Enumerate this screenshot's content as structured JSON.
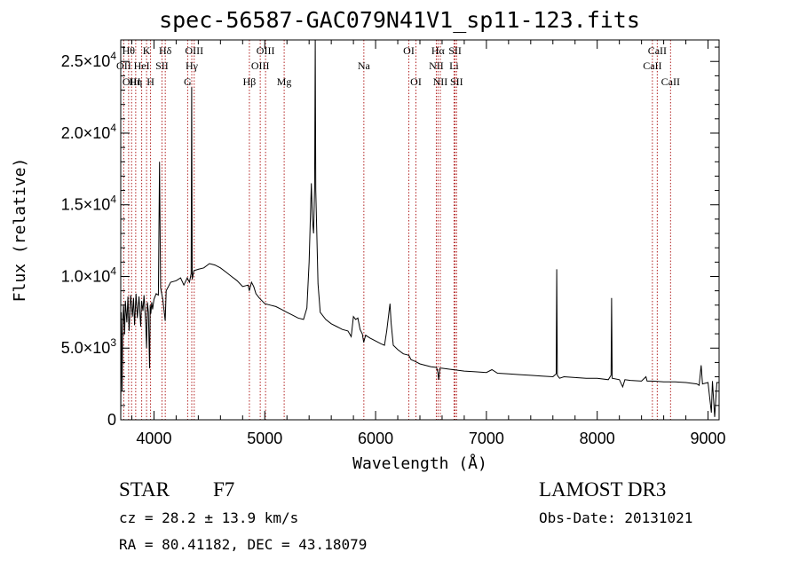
{
  "chart_data": {
    "type": "line",
    "title": "spec-56587-GAC079N41V1_sp11-123.fits",
    "xlabel": "Wavelength (Å)",
    "ylabel": "Flux (relative)",
    "xlim": [
      3700,
      9100
    ],
    "ylim": [
      0,
      26500
    ],
    "x_ticks": [
      4000,
      5000,
      6000,
      7000,
      8000,
      9000
    ],
    "y_ticks": [
      {
        "value": 0,
        "mantissa": "0",
        "exp": ""
      },
      {
        "value": 5000,
        "mantissa": "5.0×10",
        "exp": "3"
      },
      {
        "value": 10000,
        "mantissa": "1.0×10",
        "exp": "4"
      },
      {
        "value": 15000,
        "mantissa": "1.5×10",
        "exp": "4"
      },
      {
        "value": 20000,
        "mantissa": "2.0×10",
        "exp": "4"
      },
      {
        "value": 25000,
        "mantissa": "2.5×10",
        "exp": "4"
      }
    ],
    "series": [
      {
        "name": "flux",
        "points": [
          [
            3700,
            0
          ],
          [
            3705,
            7500
          ],
          [
            3712,
            2000
          ],
          [
            3718,
            6500
          ],
          [
            3725,
            8000
          ],
          [
            3735,
            6000
          ],
          [
            3742,
            8300
          ],
          [
            3755,
            6800
          ],
          [
            3765,
            8600
          ],
          [
            3775,
            6200
          ],
          [
            3790,
            8700
          ],
          [
            3805,
            7200
          ],
          [
            3815,
            8500
          ],
          [
            3825,
            6600
          ],
          [
            3838,
            8800
          ],
          [
            3850,
            7100
          ],
          [
            3865,
            8600
          ],
          [
            3880,
            6500
          ],
          [
            3888,
            8300
          ],
          [
            3900,
            7600
          ],
          [
            3910,
            8700
          ],
          [
            3925,
            6800
          ],
          [
            3933,
            5000
          ],
          [
            3940,
            8200
          ],
          [
            3950,
            7500
          ],
          [
            3960,
            3600
          ],
          [
            3966,
            8000
          ],
          [
            3972,
            7400
          ],
          [
            3980,
            8200
          ],
          [
            3988,
            7700
          ],
          [
            4000,
            8400
          ],
          [
            4020,
            8800
          ],
          [
            4040,
            8700
          ],
          [
            4050,
            18000
          ],
          [
            4060,
            9200
          ],
          [
            4080,
            8400
          ],
          [
            4101,
            6900
          ],
          [
            4110,
            9000
          ],
          [
            4150,
            9600
          ],
          [
            4200,
            9700
          ],
          [
            4240,
            9900
          ],
          [
            4270,
            9400
          ],
          [
            4300,
            9900
          ],
          [
            4320,
            9600
          ],
          [
            4335,
            10200
          ],
          [
            4340,
            23200
          ],
          [
            4345,
            9800
          ],
          [
            4360,
            10400
          ],
          [
            4400,
            10500
          ],
          [
            4450,
            10600
          ],
          [
            4500,
            10900
          ],
          [
            4550,
            10800
          ],
          [
            4600,
            10600
          ],
          [
            4650,
            10300
          ],
          [
            4700,
            10000
          ],
          [
            4750,
            9700
          ],
          [
            4800,
            9300
          ],
          [
            4850,
            9400
          ],
          [
            4860,
            9000
          ],
          [
            4880,
            9600
          ],
          [
            4900,
            9300
          ],
          [
            4920,
            8800
          ],
          [
            4950,
            8500
          ],
          [
            5000,
            8100
          ],
          [
            5050,
            8000
          ],
          [
            5100,
            7900
          ],
          [
            5150,
            7700
          ],
          [
            5200,
            7500
          ],
          [
            5250,
            7300
          ],
          [
            5300,
            7100
          ],
          [
            5350,
            7000
          ],
          [
            5380,
            7800
          ],
          [
            5400,
            11000
          ],
          [
            5420,
            16500
          ],
          [
            5430,
            14000
          ],
          [
            5440,
            13000
          ],
          [
            5450,
            16200
          ],
          [
            5455,
            26500
          ],
          [
            5460,
            16000
          ],
          [
            5480,
            9500
          ],
          [
            5500,
            7500
          ],
          [
            5550,
            7000
          ],
          [
            5600,
            6700
          ],
          [
            5650,
            6500
          ],
          [
            5700,
            6300
          ],
          [
            5750,
            6200
          ],
          [
            5780,
            5800
          ],
          [
            5800,
            7200
          ],
          [
            5820,
            7000
          ],
          [
            5840,
            7100
          ],
          [
            5860,
            6300
          ],
          [
            5880,
            6000
          ],
          [
            5893,
            5400
          ],
          [
            5910,
            5900
          ],
          [
            5950,
            5700
          ],
          [
            6000,
            5500
          ],
          [
            6050,
            5300
          ],
          [
            6080,
            5200
          ],
          [
            6100,
            6200
          ],
          [
            6120,
            7500
          ],
          [
            6130,
            8100
          ],
          [
            6140,
            6800
          ],
          [
            6160,
            5200
          ],
          [
            6200,
            4900
          ],
          [
            6250,
            4600
          ],
          [
            6300,
            4500
          ],
          [
            6320,
            4200
          ],
          [
            6350,
            4100
          ],
          [
            6400,
            3900
          ],
          [
            6450,
            3800
          ],
          [
            6500,
            3700
          ],
          [
            6550,
            3650
          ],
          [
            6563,
            3300
          ],
          [
            6570,
            2800
          ],
          [
            6580,
            3600
          ],
          [
            6600,
            3600
          ],
          [
            6700,
            3500
          ],
          [
            6800,
            3400
          ],
          [
            6900,
            3350
          ],
          [
            7000,
            3300
          ],
          [
            7050,
            3500
          ],
          [
            7100,
            3250
          ],
          [
            7200,
            3200
          ],
          [
            7300,
            3150
          ],
          [
            7400,
            3100
          ],
          [
            7500,
            3050
          ],
          [
            7600,
            3000
          ],
          [
            7630,
            3200
          ],
          [
            7635,
            10500
          ],
          [
            7640,
            3100
          ],
          [
            7660,
            2900
          ],
          [
            7700,
            3000
          ],
          [
            7800,
            2950
          ],
          [
            7900,
            2900
          ],
          [
            8000,
            2900
          ],
          [
            8100,
            2800
          ],
          [
            8125,
            3100
          ],
          [
            8130,
            8500
          ],
          [
            8135,
            2900
          ],
          [
            8200,
            2800
          ],
          [
            8230,
            2300
          ],
          [
            8250,
            2800
          ],
          [
            8300,
            2750
          ],
          [
            8400,
            2700
          ],
          [
            8440,
            3000
          ],
          [
            8450,
            2700
          ],
          [
            8500,
            2700
          ],
          [
            8600,
            2650
          ],
          [
            8700,
            2650
          ],
          [
            8800,
            2600
          ],
          [
            8900,
            2500
          ],
          [
            8920,
            2400
          ],
          [
            8938,
            3800
          ],
          [
            8950,
            2500
          ],
          [
            9000,
            2600
          ],
          [
            9030,
            500
          ],
          [
            9040,
            2700
          ],
          [
            9060,
            200
          ],
          [
            9080,
            2600
          ],
          [
            9100,
            2600
          ]
        ]
      }
    ],
    "line_markers": [
      {
        "wavelength": 3727,
        "label": "OII",
        "row": 1
      },
      {
        "wavelength": 3771,
        "label": "Hθ",
        "row": 0
      },
      {
        "wavelength": 3798,
        "label": "OIII",
        "row": 2
      },
      {
        "wavelength": 3835,
        "label": "Hη",
        "row": 2
      },
      {
        "wavelength": 3889,
        "label": "HeI",
        "row": 1
      },
      {
        "wavelength": 3933,
        "label": "K",
        "row": 0
      },
      {
        "wavelength": 3969,
        "label": "H",
        "row": 2
      },
      {
        "wavelength": 4072,
        "label": "SII",
        "row": 1
      },
      {
        "wavelength": 4102,
        "label": "Hδ",
        "row": 0
      },
      {
        "wavelength": 4304,
        "label": "G",
        "row": 2
      },
      {
        "wavelength": 4341,
        "label": "Hγ",
        "row": 1
      },
      {
        "wavelength": 4363,
        "label": "OIII",
        "row": 0
      },
      {
        "wavelength": 4861,
        "label": "Hβ",
        "row": 2
      },
      {
        "wavelength": 4959,
        "label": "OIII",
        "row": 1
      },
      {
        "wavelength": 5007,
        "label": "OIII",
        "row": 0
      },
      {
        "wavelength": 5175,
        "label": "Mg",
        "row": 2
      },
      {
        "wavelength": 5894,
        "label": "Na",
        "row": 1
      },
      {
        "wavelength": 6300,
        "label": "OI",
        "row": 0
      },
      {
        "wavelength": 6364,
        "label": "OI",
        "row": 2
      },
      {
        "wavelength": 6548,
        "label": "NII",
        "row": 1
      },
      {
        "wavelength": 6563,
        "label": "Hα",
        "row": 0
      },
      {
        "wavelength": 6584,
        "label": "NII",
        "row": 2
      },
      {
        "wavelength": 6708,
        "label": "Li",
        "row": 1
      },
      {
        "wavelength": 6717,
        "label": "SII",
        "row": 0
      },
      {
        "wavelength": 6731,
        "label": "SII",
        "row": 2
      },
      {
        "wavelength": 8498,
        "label": "CaII",
        "row": 1
      },
      {
        "wavelength": 8542,
        "label": "CaII",
        "row": 0
      },
      {
        "wavelength": 8662,
        "label": "CaII",
        "row": 2
      }
    ]
  },
  "info": {
    "object_class": "STAR",
    "subclass": "F7",
    "redshift_line": "cz = 28.2 ± 13.9 km/s",
    "coords_line": "RA =  80.41182, DEC =  43.18079",
    "survey": "LAMOST DR3",
    "obs_date": "Obs-Date: 20131021"
  }
}
